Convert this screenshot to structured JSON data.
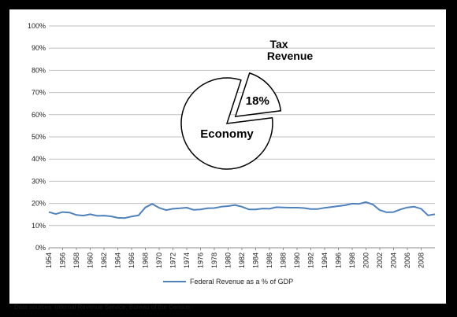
{
  "chart_data": {
    "type": "line",
    "title": "",
    "xlabel": "",
    "ylabel": "",
    "ylim": [
      0,
      100
    ],
    "y_unit": "%",
    "y_ticks": [
      "0%",
      "10%",
      "20%",
      "30%",
      "40%",
      "50%",
      "60%",
      "70%",
      "80%",
      "90%",
      "100%"
    ],
    "x_range": [
      1954,
      2010
    ],
    "x_ticks": [
      "1954",
      "1956",
      "1958",
      "1960",
      "1962",
      "1964",
      "1966",
      "1968",
      "1970",
      "1972",
      "1974",
      "1976",
      "1978",
      "1980",
      "1982",
      "1984",
      "1986",
      "1988",
      "1990",
      "1992",
      "1994",
      "1996",
      "1998",
      "2000",
      "2002",
      "2004",
      "2006",
      "2008"
    ],
    "grid": "horizontal",
    "legend_position": "bottom",
    "series": [
      {
        "name": "Federal Revenue as a % of GDP",
        "color": "#4f81bd",
        "x": [
          1954,
          1955,
          1956,
          1957,
          1958,
          1959,
          1960,
          1961,
          1962,
          1963,
          1964,
          1965,
          1966,
          1967,
          1968,
          1969,
          1970,
          1971,
          1972,
          1973,
          1974,
          1975,
          1976,
          1977,
          1978,
          1979,
          1980,
          1981,
          1982,
          1983,
          1984,
          1985,
          1986,
          1987,
          1988,
          1989,
          1990,
          1991,
          1992,
          1993,
          1994,
          1995,
          1996,
          1997,
          1998,
          1999,
          2000,
          2001,
          2002,
          2003,
          2004,
          2005,
          2006,
          2007,
          2008,
          2009,
          2010
        ],
        "values": [
          16.1,
          15.2,
          16.1,
          15.9,
          14.8,
          14.5,
          15.1,
          14.4,
          14.5,
          14.2,
          13.5,
          13.4,
          14.1,
          14.6,
          18.2,
          19.8,
          18.0,
          17.0,
          17.6,
          17.8,
          18.1,
          17.1,
          17.3,
          17.8,
          17.9,
          18.5,
          18.8,
          19.3,
          18.5,
          17.3,
          17.3,
          17.7,
          17.6,
          18.3,
          18.2,
          18.1,
          18.1,
          17.9,
          17.5,
          17.5,
          18.0,
          18.4,
          18.8,
          19.2,
          19.9,
          19.8,
          20.6,
          19.5,
          17.0,
          16.0,
          16.1,
          17.3,
          18.2,
          18.5,
          17.6,
          14.6,
          15.1
        ]
      }
    ],
    "inset": {
      "type": "pie",
      "slices": [
        {
          "label": "Economy",
          "value": 82
        },
        {
          "label": "Tax Revenue",
          "value": 18,
          "value_label": "18%",
          "exploded": true
        }
      ]
    }
  },
  "source_note": "Data sources: Internal Revenue Service, Bureau of the Census"
}
